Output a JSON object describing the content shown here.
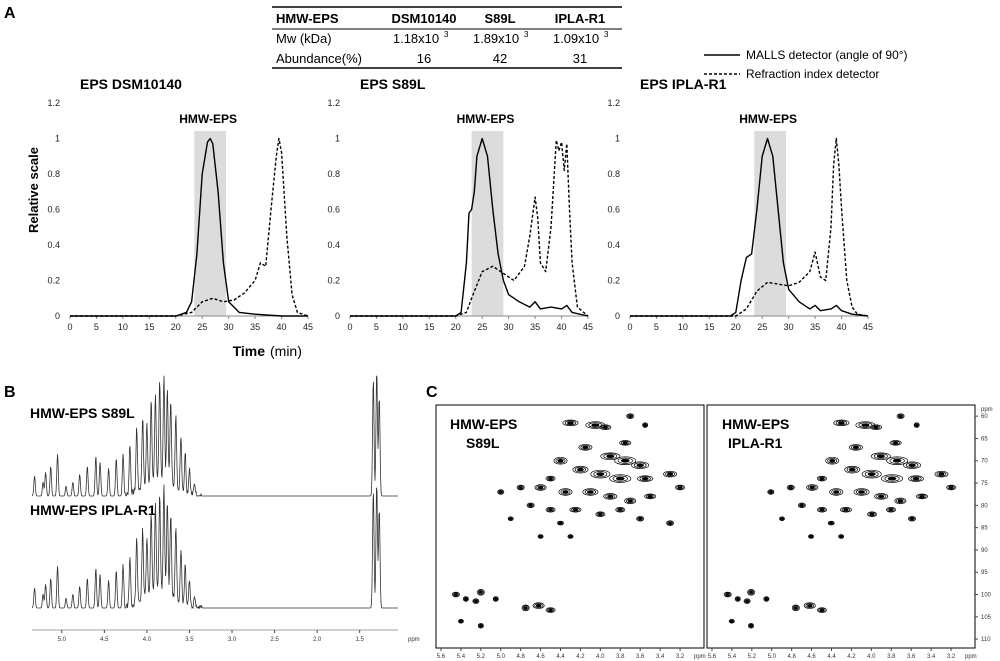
{
  "panel_labels": {
    "a": "A",
    "b": "B",
    "c": "C"
  },
  "table": {
    "corner": "HMW-EPS",
    "columns": [
      "DSM10140",
      "S89L",
      "IPLA-R1"
    ],
    "rows": [
      {
        "label": "Mw (kDa)",
        "values": [
          "1.18x10",
          "1.89x10",
          "1.09x10"
        ],
        "exp": "3"
      },
      {
        "label": "Abundance(%)",
        "values": [
          "16",
          "42",
          "31"
        ]
      }
    ]
  },
  "legend": {
    "solid": "MALLS detector (angle of 90°)",
    "dashed": "Refraction index detector"
  },
  "chart_data": [
    {
      "type": "line",
      "title": "EPS DSM10140",
      "ylabel": "Relative scale",
      "xlabel": "Time",
      "xlabel_unit": "(min)",
      "xlim": [
        0,
        45
      ],
      "ylim": [
        0,
        1.2
      ],
      "x_ticks": [
        "0",
        "5",
        "10",
        "15",
        "20",
        "25",
        "30",
        "35",
        "40",
        "45"
      ],
      "y_ticks": [
        "0",
        "0.2",
        "0.4",
        "0.6",
        "0.8",
        "1",
        "1.2"
      ],
      "shade": {
        "label": "HMW-EPS",
        "range": [
          23.5,
          29.5
        ]
      },
      "series": [
        {
          "name": "MALLS detector (angle of 90°)",
          "style": "solid",
          "x": [
            0,
            20,
            22,
            23,
            24,
            25,
            26,
            26.5,
            27,
            28,
            29,
            30,
            32,
            35,
            40,
            45
          ],
          "y": [
            0,
            0,
            0.02,
            0.08,
            0.35,
            0.8,
            0.98,
            1,
            0.97,
            0.7,
            0.3,
            0.08,
            0.02,
            0.01,
            0,
            0
          ]
        },
        {
          "name": "Refraction index detector",
          "style": "dashed",
          "x": [
            0,
            20,
            23,
            25,
            27,
            29,
            31,
            33,
            35,
            36,
            37,
            38,
            39,
            39.5,
            40,
            41,
            42,
            43,
            45
          ],
          "y": [
            0,
            0,
            0.02,
            0.08,
            0.1,
            0.08,
            0.09,
            0.13,
            0.2,
            0.3,
            0.28,
            0.6,
            0.9,
            1,
            0.92,
            0.45,
            0.12,
            0.02,
            0
          ]
        }
      ]
    },
    {
      "type": "line",
      "title": "EPS S89L",
      "xlim": [
        0,
        45
      ],
      "ylim": [
        0,
        1.2
      ],
      "x_ticks": [
        "0",
        "5",
        "10",
        "15",
        "20",
        "25",
        "30",
        "35",
        "40",
        "45"
      ],
      "y_ticks": [
        "0",
        "0.2",
        "0.4",
        "0.6",
        "0.8",
        "1",
        "1.2"
      ],
      "shade": {
        "label": "HMW-EPS",
        "range": [
          23,
          29
        ]
      },
      "series": [
        {
          "name": "MALLS detector (angle of 90°)",
          "style": "solid",
          "x": [
            0,
            20,
            21,
            22,
            22.5,
            23,
            23.5,
            24,
            25,
            26,
            27,
            28,
            29,
            30,
            32,
            34,
            35,
            36,
            38,
            40,
            41,
            42,
            45
          ],
          "y": [
            0,
            0,
            0.02,
            0.3,
            0.58,
            0.6,
            0.7,
            0.9,
            1,
            0.9,
            0.6,
            0.35,
            0.2,
            0.12,
            0.08,
            0.05,
            0.08,
            0.04,
            0.05,
            0.04,
            0.06,
            0.02,
            0
          ]
        },
        {
          "name": "Refraction index detector",
          "style": "dashed",
          "x": [
            0,
            20,
            22,
            23,
            25,
            27,
            29,
            31,
            33,
            34,
            35,
            35.5,
            36,
            37,
            38,
            39,
            39.5,
            40,
            40.5,
            41,
            41.5,
            42,
            43,
            45
          ],
          "y": [
            0,
            0,
            0.02,
            0.1,
            0.25,
            0.28,
            0.24,
            0.2,
            0.28,
            0.45,
            0.67,
            0.55,
            0.3,
            0.25,
            0.5,
            0.99,
            0.93,
            0.98,
            0.82,
            0.97,
            0.6,
            0.3,
            0.05,
            0
          ]
        }
      ]
    },
    {
      "type": "line",
      "title": "EPS IPLA-R1",
      "xlim": [
        0,
        45
      ],
      "ylim": [
        0,
        1.2
      ],
      "x_ticks": [
        "0",
        "5",
        "10",
        "15",
        "20",
        "25",
        "30",
        "35",
        "40",
        "45"
      ],
      "y_ticks": [
        "0",
        "0.2",
        "0.4",
        "0.6",
        "0.8",
        "1",
        "1.2"
      ],
      "shade": {
        "label": "HMW-EPS",
        "range": [
          23.5,
          29.5
        ]
      },
      "series": [
        {
          "name": "MALLS detector (angle of 90°)",
          "style": "solid",
          "x": [
            0,
            19,
            20,
            21,
            22,
            23,
            24,
            25,
            26,
            27,
            28,
            29,
            30,
            32,
            34,
            35,
            36,
            38,
            39,
            40,
            42,
            45
          ],
          "y": [
            0,
            0,
            0.02,
            0.2,
            0.33,
            0.35,
            0.6,
            0.9,
            1,
            0.9,
            0.6,
            0.3,
            0.15,
            0.08,
            0.04,
            0.06,
            0.03,
            0.04,
            0.06,
            0.03,
            0.01,
            0
          ]
        },
        {
          "name": "Refraction index detector",
          "style": "dashed",
          "x": [
            0,
            20,
            22,
            24,
            26,
            28,
            30,
            32,
            34,
            35,
            36,
            37,
            38,
            38.5,
            39,
            39.5,
            40,
            41,
            42,
            43,
            45
          ],
          "y": [
            0,
            0,
            0.04,
            0.14,
            0.19,
            0.18,
            0.17,
            0.19,
            0.25,
            0.36,
            0.22,
            0.2,
            0.5,
            0.85,
            1,
            0.85,
            0.6,
            0.2,
            0.05,
            0.01,
            0
          ]
        }
      ]
    }
  ],
  "nmr_1d": {
    "labels": [
      "HMW-EPS S89L",
      "HMW-EPS IPLA-R1"
    ],
    "ticks": [
      "5.0",
      "4.5",
      "4.0",
      "3.5",
      "3.0",
      "2.5",
      "2.0",
      "1.5"
    ],
    "unit": "ppm"
  },
  "nmr_2d": {
    "panels": [
      {
        "line1": "HMW-EPS",
        "line2": "S89L"
      },
      {
        "line1": "HMW-EPS",
        "line2": "IPLA-R1"
      }
    ],
    "x_ticks": [
      "5.6",
      "5.4",
      "5.2",
      "5.0",
      "4.8",
      "4.6",
      "4.4",
      "4.2",
      "4.0",
      "3.8",
      "3.6",
      "3.4",
      "3.2"
    ],
    "y_ticks": [
      "60",
      "65",
      "70",
      "75",
      "80",
      "85",
      "90",
      "95",
      "100",
      "105",
      "110"
    ],
    "unit": "ppm"
  }
}
